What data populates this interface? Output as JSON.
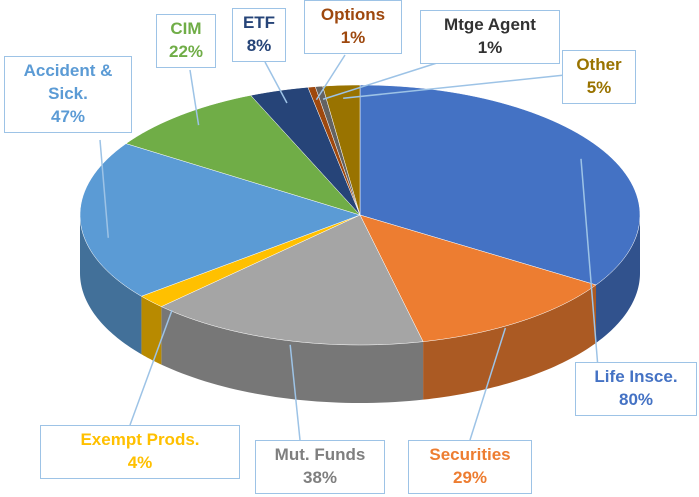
{
  "chart_data": {
    "type": "pie3d",
    "categories": [
      "Life Insce.",
      "Securities",
      "Mut. Funds",
      "Exempt Prods.",
      "Accident & Sick.",
      "CIM",
      "ETF",
      "Options",
      "Mtge Agent",
      "Other"
    ],
    "values": [
      80,
      29,
      38,
      4,
      47,
      22,
      8,
      1,
      1,
      5
    ],
    "value_labels": [
      "80%",
      "29%",
      "38%",
      "4%",
      "47%",
      "22%",
      "8%",
      "1%",
      "1%",
      "5%"
    ],
    "colors": [
      "#4472c4",
      "#ed7d31",
      "#a5a5a5",
      "#ffc000",
      "#5b9bd5",
      "#70ad47",
      "#264478",
      "#9e480e",
      "#636363",
      "#997300"
    ]
  }
}
